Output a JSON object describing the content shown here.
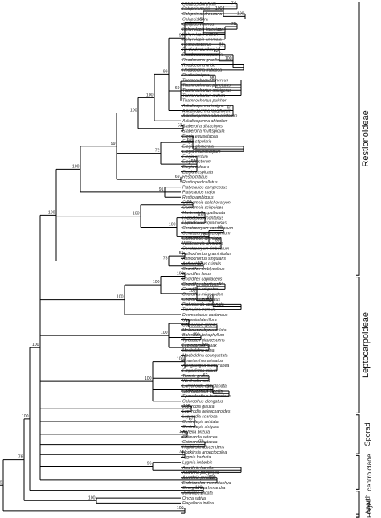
{
  "tree": {
    "taxa": [
      "Calopsis burchellii",
      "Calopsis muirii",
      "Calopsis andreaeana",
      "Calopsis dura",
      "Calopsis viminea",
      "Ischyrolepis karooica",
      "Ischyrolepis sieberi",
      "Ischyrolepis anomala",
      "Restio distichus",
      "Restio festuciformis",
      "Rhodocoma capensis",
      "Rhodocoma gracilis",
      "Rhodocoma arida",
      "Rhodocoma fruticosa",
      "Restio insignis",
      "Thamnochortus cinereus",
      "Thamnochortus punctatus",
      "Thamnochortus spicigerus",
      "Thamnochortus nutans",
      "Thamnochortus pulcher",
      "Askidiosperma insigne",
      "Askidiosperma longiflorum",
      "Askidiosperma albo-aristatum",
      "Askidiosperma africolum",
      "Staberoha distachyos",
      "Staberoha multispicula",
      "Elegia equisetacea",
      "Elegia stipularis",
      "Elegia glomerata",
      "Elegia macrocarpum",
      "Elegia rectum",
      "Elegia tectorum",
      "Elegia coleura",
      "Elegia cuspidata",
      "Restio tritiaus",
      "Restio pedicellatus",
      "Platycaulos compressus",
      "Platycaulos major",
      "Restio ambiguus",
      "Cannomois dolichocaryon",
      "Cannomois scirpoides",
      "Mastersiella spathulata",
      "Hypodiscus montanus",
      "Hypodiscus squamosus",
      "Ceratocaryum caespitosum",
      "Ceratocaryum xerophilum",
      "Cannomois arenicola",
      "Willdenowia arescens",
      "Ceratocaryum fimbriatum",
      "Anthochortus graminifolius",
      "Anthochortus singularis",
      "Anthochortus crinalis",
      "Chordifex amblycoleus",
      "Chordifex laxus",
      "Chordifex capillaceus",
      "Chordifex abortivus",
      "Chordifex crispatus",
      "Chordifex microcodon",
      "Chordifex fastigiatus",
      "Platychorda applanata",
      "Tremulina tremula",
      "Desmocladus castaneus",
      "Harperia lateriflora",
      "Coleocarya gracilis",
      "Melanostachya ustulata",
      "Baloskion tetraphyllum",
      "Tyrbastes glaucescens",
      "Leptocarpus tenax",
      "Meeboldina cana",
      "Meeboldina coangustata",
      "Chaetanthus aristatus",
      "Alexgeorgea subterranea",
      "Empodisma minus",
      "Taraxis grossa",
      "Winifredia sola",
      "Eurychorda complanata",
      "Sporadanthus gracilis",
      "Sporadanthus tasmanicus",
      "Calorophus elongatus",
      "Lepyrodia glauca",
      "Lepyrodia heleocharoides",
      "Lepyrodia scariosa",
      "Centrolepis aristata",
      "Centrolepis strigosa",
      "Aphelia brizula",
      "Gaimardia setacea",
      "Gaimardia setacea",
      "Hopkinsia adscendens",
      "Hopkinsia anoectocolea",
      "Lyginia barbata",
      "Lyginia imberbis",
      "Anarthria humilis",
      "Anarthria polyphylla",
      "Anarthria prolifera",
      "Ecdeiocolea monostachya",
      "Georgeantha hexandra",
      "Joinvillea plicata",
      "Oryza sativa",
      "Flagellaria indica"
    ],
    "support": [
      "100",
      "74",
      "100",
      "95",
      "75",
      "58",
      "100",
      "95",
      "89",
      "100",
      "82",
      "99",
      "98",
      "69",
      "100",
      "91",
      "53",
      "100",
      "99",
      "69",
      "69",
      "65",
      "72",
      "100",
      "100",
      "91",
      "100",
      "92",
      "100",
      "100",
      "64",
      "60",
      "99",
      "51",
      "97",
      "78",
      "100",
      "100",
      "100",
      "64",
      "100",
      "88",
      "100",
      "100",
      "71",
      "100",
      "100",
      "79",
      "100",
      "87",
      "62",
      "100",
      "78",
      "100",
      "71",
      "100",
      "76",
      "100",
      "96",
      "100",
      "100",
      "100",
      "100",
      "100",
      "100",
      "100",
      "100",
      "99",
      "100",
      "100",
      "100"
    ],
    "groups": [
      "Restionoideae",
      "Leptocarpoideae",
      "Sporad",
      "centro clade",
      "Anarth",
      "JEP, Flagell"
    ]
  }
}
